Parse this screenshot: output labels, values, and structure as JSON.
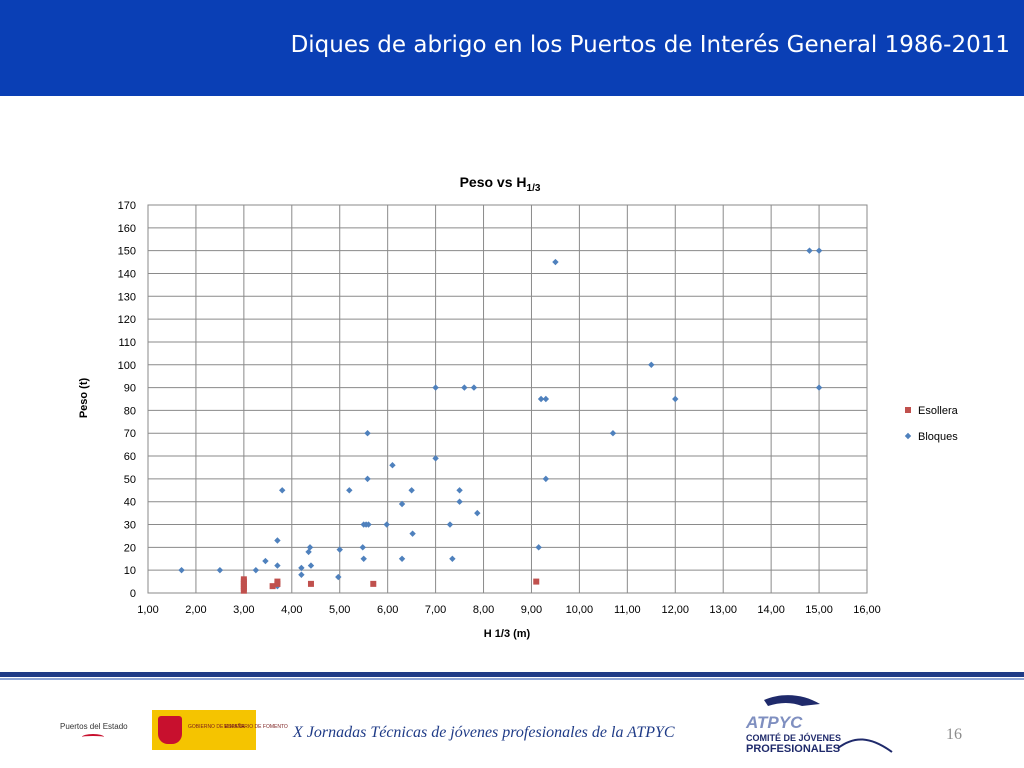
{
  "header": {
    "title": "Diques de abrigo en los Puertos de Interés General  1986-2011"
  },
  "footer": {
    "text": "X Jornadas Técnicas de jóvenes profesionales de la ATPYC",
    "page_number": "16",
    "logo_puertos": "Puertos del Estado",
    "logo_gobierno": "GOBIERNO DE ESPAÑA",
    "logo_ministerio": "MINISTERIO DE FOMENTO",
    "logo_atpyc": "ATPYC",
    "logo_atpyc_sub1": "COMITÉ DE JÓVENES",
    "logo_atpyc_sub2": "PROFESIONALES"
  },
  "colors": {
    "header": "#0a3fb5",
    "esollera": "#c0504d",
    "bloques": "#4f81bd",
    "footer_text": "#1f3b87"
  },
  "chart_data": {
    "type": "scatter",
    "title": "Peso vs H",
    "title_subscript": "1/3",
    "xlabel": "H 1/3 (m)",
    "ylabel": "Peso (t)",
    "xlim": [
      1,
      16
    ],
    "ylim": [
      0,
      170
    ],
    "x_ticks": [
      "1,00",
      "2,00",
      "3,00",
      "4,00",
      "5,00",
      "6,00",
      "7,00",
      "8,00",
      "9,00",
      "10,00",
      "11,00",
      "12,00",
      "13,00",
      "14,00",
      "15,00",
      "16,00"
    ],
    "y_ticks": [
      "0",
      "10",
      "20",
      "30",
      "40",
      "50",
      "60",
      "70",
      "80",
      "90",
      "100",
      "110",
      "120",
      "130",
      "140",
      "150",
      "160",
      "170"
    ],
    "grid": true,
    "legend_position": "right",
    "series": [
      {
        "name": "Esollera",
        "marker": "square",
        "points": [
          [
            3.0,
            1
          ],
          [
            3.0,
            2
          ],
          [
            3.0,
            3
          ],
          [
            3.0,
            4
          ],
          [
            3.0,
            5
          ],
          [
            3.0,
            6
          ],
          [
            3.6,
            3
          ],
          [
            3.7,
            4
          ],
          [
            3.7,
            5
          ],
          [
            4.4,
            4
          ],
          [
            5.7,
            4
          ],
          [
            9.1,
            5
          ]
        ]
      },
      {
        "name": "Bloques",
        "marker": "diamond",
        "points": [
          [
            1.7,
            10
          ],
          [
            2.5,
            10
          ],
          [
            3.25,
            10
          ],
          [
            3.45,
            14
          ],
          [
            3.7,
            12
          ],
          [
            3.7,
            23
          ],
          [
            3.7,
            3
          ],
          [
            3.8,
            45
          ],
          [
            4.2,
            11
          ],
          [
            4.2,
            8
          ],
          [
            4.35,
            18
          ],
          [
            4.38,
            20
          ],
          [
            4.4,
            12
          ],
          [
            4.97,
            7
          ],
          [
            5.0,
            19
          ],
          [
            5.2,
            45
          ],
          [
            5.48,
            20
          ],
          [
            5.5,
            30
          ],
          [
            5.5,
            15
          ],
          [
            5.55,
            30
          ],
          [
            5.58,
            50
          ],
          [
            5.58,
            70
          ],
          [
            5.6,
            30
          ],
          [
            5.98,
            30
          ],
          [
            6.1,
            56
          ],
          [
            6.3,
            39
          ],
          [
            6.3,
            15
          ],
          [
            6.5,
            45
          ],
          [
            6.52,
            26
          ],
          [
            7.0,
            90
          ],
          [
            7.0,
            59
          ],
          [
            7.3,
            30
          ],
          [
            7.35,
            15
          ],
          [
            7.5,
            45
          ],
          [
            7.5,
            40
          ],
          [
            7.6,
            90
          ],
          [
            7.8,
            90
          ],
          [
            7.87,
            35
          ],
          [
            9.15,
            20
          ],
          [
            9.2,
            85
          ],
          [
            9.3,
            85
          ],
          [
            9.3,
            50
          ],
          [
            9.5,
            145
          ],
          [
            10.7,
            70
          ],
          [
            11.5,
            100
          ],
          [
            12.0,
            85
          ],
          [
            14.8,
            150
          ],
          [
            15.0,
            150
          ],
          [
            15.0,
            90
          ]
        ]
      }
    ]
  }
}
